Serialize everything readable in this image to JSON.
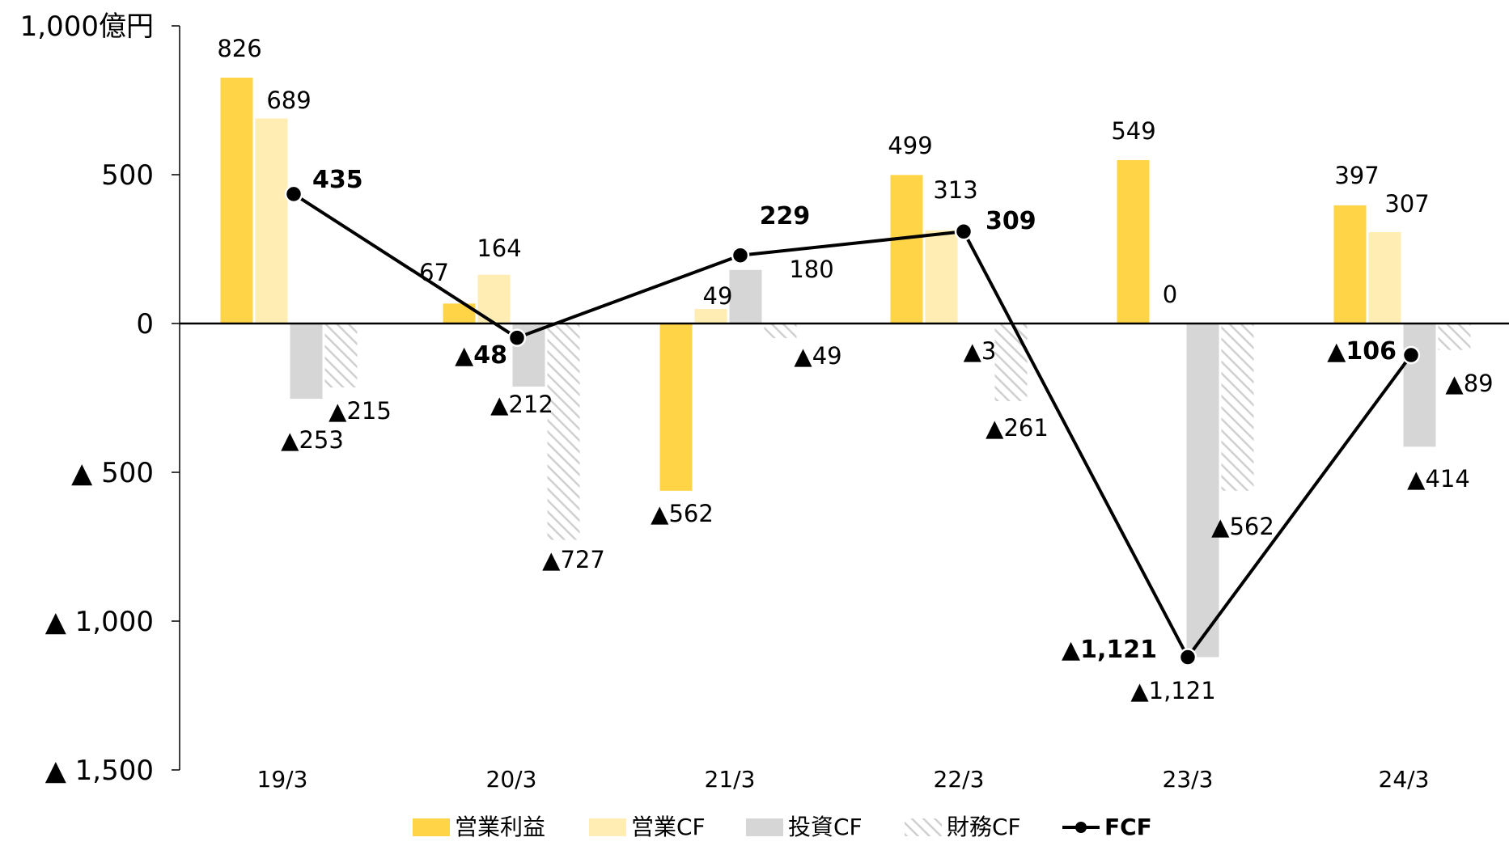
{
  "chart_data": {
    "type": "bar",
    "unit_label": "1,000億円",
    "categories": [
      "19/3",
      "20/3",
      "21/3",
      "22/3",
      "23/3",
      "24/3"
    ],
    "ylim": [
      -1500,
      1000
    ],
    "y_ticks": [
      {
        "value": 1000,
        "label": "1,000億円"
      },
      {
        "value": 500,
        "label": "500"
      },
      {
        "value": 0,
        "label": "0"
      },
      {
        "value": -500,
        "label": "▲ 500"
      },
      {
        "value": -1000,
        "label": "▲ 1,000"
      },
      {
        "value": -1500,
        "label": "▲ 1,500"
      }
    ],
    "series": [
      {
        "name": "営業利益",
        "color": "#FFD447",
        "pattern": "solid",
        "values": [
          826,
          67,
          -562,
          499,
          549,
          397
        ],
        "labels": [
          "826",
          "67",
          "▲562",
          "499",
          "549",
          "397"
        ]
      },
      {
        "name": "営業CF",
        "color": "#FFEDB3",
        "pattern": "solid",
        "values": [
          689,
          164,
          49,
          313,
          0,
          307
        ],
        "labels": [
          "689",
          "164",
          "49",
          "313",
          "0",
          "307"
        ]
      },
      {
        "name": "投資CF",
        "color": "#D6D6D6",
        "pattern": "solid",
        "values": [
          -253,
          -212,
          180,
          -3,
          -1121,
          -414
        ],
        "labels": [
          "▲253",
          "▲212",
          "180",
          "▲3",
          "▲1,121",
          "▲414"
        ]
      },
      {
        "name": "財務CF",
        "color": "#D9D9D9",
        "pattern": "hatched",
        "values": [
          -215,
          -727,
          -49,
          -261,
          -562,
          -89
        ],
        "labels": [
          "▲215",
          "▲727",
          "▲49",
          "▲261",
          "▲562",
          "▲89"
        ]
      }
    ],
    "line_series": {
      "name": "FCF",
      "color": "#000000",
      "values": [
        435,
        -48,
        229,
        309,
        -1121,
        -106
      ],
      "labels": [
        "435",
        "▲48",
        "229",
        "309",
        "▲1,121",
        "▲106"
      ]
    },
    "legend_position": "bottom",
    "grid": false
  }
}
